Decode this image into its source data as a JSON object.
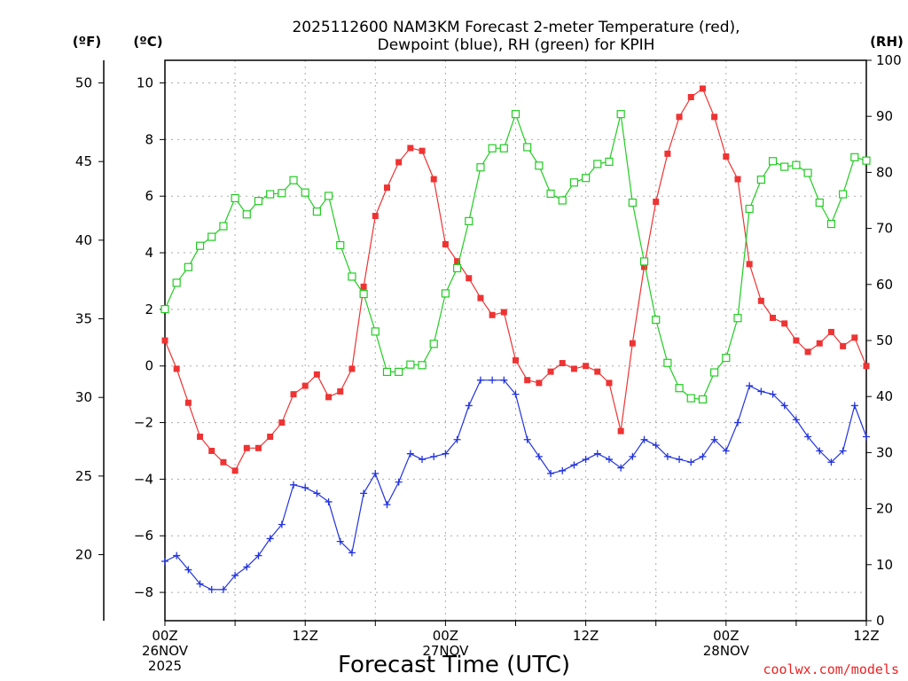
{
  "chart_data": {
    "type": "line",
    "title": [
      "2025112600 NAM3KM Forecast 2-meter Temperature (red),",
      "Dewpoint (blue), RH (green) for KPIH"
    ],
    "xlabel": "Forecast Time (UTC)",
    "units": {
      "f": "(ºF)",
      "c": "(ºC)",
      "rh": "(RH)"
    },
    "credit": "coolwx.com/models",
    "xlim": [
      0,
      60
    ],
    "ylim_c": [
      -9,
      10.8
    ],
    "ylim_rh": [
      0,
      100
    ],
    "f_ticks": [
      {
        "value": 20,
        "label": "20"
      },
      {
        "value": 25,
        "label": "25"
      },
      {
        "value": 30,
        "label": "30"
      },
      {
        "value": 35,
        "label": "35"
      },
      {
        "value": 40,
        "label": "40"
      },
      {
        "value": 45,
        "label": "45"
      },
      {
        "value": 50,
        "label": "50"
      }
    ],
    "c_ticks": [
      {
        "value": -8,
        "label": "−8"
      },
      {
        "value": -6,
        "label": "−6"
      },
      {
        "value": -4,
        "label": "−4"
      },
      {
        "value": -2,
        "label": "−2"
      },
      {
        "value": 0,
        "label": "0"
      },
      {
        "value": 2,
        "label": "2"
      },
      {
        "value": 4,
        "label": "4"
      },
      {
        "value": 6,
        "label": "6"
      },
      {
        "value": 8,
        "label": "8"
      },
      {
        "value": 10,
        "label": "10"
      }
    ],
    "rh_ticks": [
      {
        "value": 0,
        "label": "0"
      },
      {
        "value": 10,
        "label": "10"
      },
      {
        "value": 20,
        "label": "20"
      },
      {
        "value": 30,
        "label": "30"
      },
      {
        "value": 40,
        "label": "40"
      },
      {
        "value": 50,
        "label": "50"
      },
      {
        "value": 60,
        "label": "60"
      },
      {
        "value": 70,
        "label": "70"
      },
      {
        "value": 80,
        "label": "80"
      },
      {
        "value": 90,
        "label": "90"
      },
      {
        "value": 100,
        "label": "100"
      }
    ],
    "x_ticks": [
      {
        "hour": 0,
        "lines": [
          "00Z",
          "26NOV",
          "2025"
        ]
      },
      {
        "hour": 12,
        "lines": [
          "12Z"
        ]
      },
      {
        "hour": 24,
        "lines": [
          "00Z",
          "27NOV"
        ]
      },
      {
        "hour": 36,
        "lines": [
          "12Z"
        ]
      },
      {
        "hour": 48,
        "lines": [
          "00Z",
          "28NOV"
        ]
      },
      {
        "hour": 60,
        "lines": [
          "12Z"
        ]
      }
    ],
    "x_hours": [
      0,
      1,
      2,
      3,
      4,
      5,
      6,
      7,
      8,
      9,
      10,
      11,
      12,
      13,
      14,
      15,
      16,
      17,
      18,
      19,
      20,
      21,
      22,
      23,
      24,
      25,
      26,
      27,
      28,
      29,
      30,
      31,
      32,
      33,
      34,
      35,
      36,
      37,
      38,
      39,
      40,
      41,
      42,
      43,
      44,
      45,
      46,
      47,
      48,
      49,
      50,
      51,
      52,
      53,
      54,
      55,
      56,
      57,
      58,
      59,
      60
    ],
    "series": [
      {
        "name": "2-meter Temperature",
        "unit": "C",
        "color": "#ee3333",
        "marker": "filled-square",
        "values": [
          0.9,
          -0.1,
          -1.3,
          -2.5,
          -3.0,
          -3.4,
          -3.7,
          -2.9,
          -2.9,
          -2.5,
          -2.0,
          -1.0,
          -0.7,
          -0.3,
          -1.1,
          -0.9,
          -0.1,
          2.8,
          5.3,
          6.3,
          7.2,
          7.7,
          7.6,
          6.6,
          4.3,
          3.7,
          3.1,
          2.4,
          1.8,
          1.9,
          0.2,
          -0.5,
          -0.6,
          -0.2,
          0.1,
          -0.1,
          0.0,
          -0.2,
          -0.6,
          -2.3,
          0.8,
          3.5,
          5.8,
          7.5,
          8.8,
          9.5,
          9.8,
          8.8,
          7.4,
          6.6,
          3.6,
          2.3,
          1.7,
          1.5,
          0.9,
          0.5,
          0.8,
          1.2,
          0.7,
          1.0,
          0.0
        ]
      },
      {
        "name": "Dewpoint",
        "unit": "C",
        "color": "#2233dd",
        "marker": "plus",
        "values": [
          -6.9,
          -6.7,
          -7.2,
          -7.7,
          -7.9,
          -7.9,
          -7.4,
          -7.1,
          -6.7,
          -6.1,
          -5.6,
          -4.2,
          -4.3,
          -4.5,
          -4.8,
          -6.2,
          -6.6,
          -4.5,
          -3.8,
          -4.9,
          -4.1,
          -3.1,
          -3.3,
          -3.2,
          -3.1,
          -2.6,
          -1.4,
          -0.5,
          -0.5,
          -0.5,
          -1.0,
          -2.6,
          -3.2,
          -3.8,
          -3.7,
          -3.5,
          -3.3,
          -3.1,
          -3.3,
          -3.6,
          -3.2,
          -2.6,
          -2.8,
          -3.2,
          -3.3,
          -3.4,
          -3.2,
          -2.6,
          -3.0,
          -2.0,
          -0.7,
          -0.9,
          -1.0,
          -1.4,
          -1.9,
          -2.5,
          -3.0,
          -3.4,
          -3.0,
          -1.4,
          -2.5
        ]
      },
      {
        "name": "RH",
        "unit": "%",
        "color": "#22cc22",
        "marker": "open-square",
        "values": [
          55.6,
          60.3,
          63.1,
          66.9,
          68.5,
          70.4,
          75.4,
          72.5,
          74.9,
          76.1,
          76.3,
          78.6,
          76.4,
          73.0,
          75.8,
          67.0,
          61.4,
          58.3,
          51.6,
          44.4,
          44.4,
          45.7,
          45.6,
          49.4,
          58.4,
          62.9,
          71.3,
          80.9,
          84.3,
          84.3,
          90.4,
          84.5,
          81.2,
          76.2,
          75.0,
          78.2,
          79.0,
          81.5,
          81.9,
          90.4,
          74.6,
          64.1,
          53.7,
          46.0,
          41.5,
          39.7,
          39.5,
          44.3,
          46.9,
          54.0,
          73.5,
          78.7,
          82.0,
          81.0,
          81.3,
          79.9,
          74.6,
          70.8,
          76.1,
          82.7,
          82.1
        ]
      }
    ]
  }
}
